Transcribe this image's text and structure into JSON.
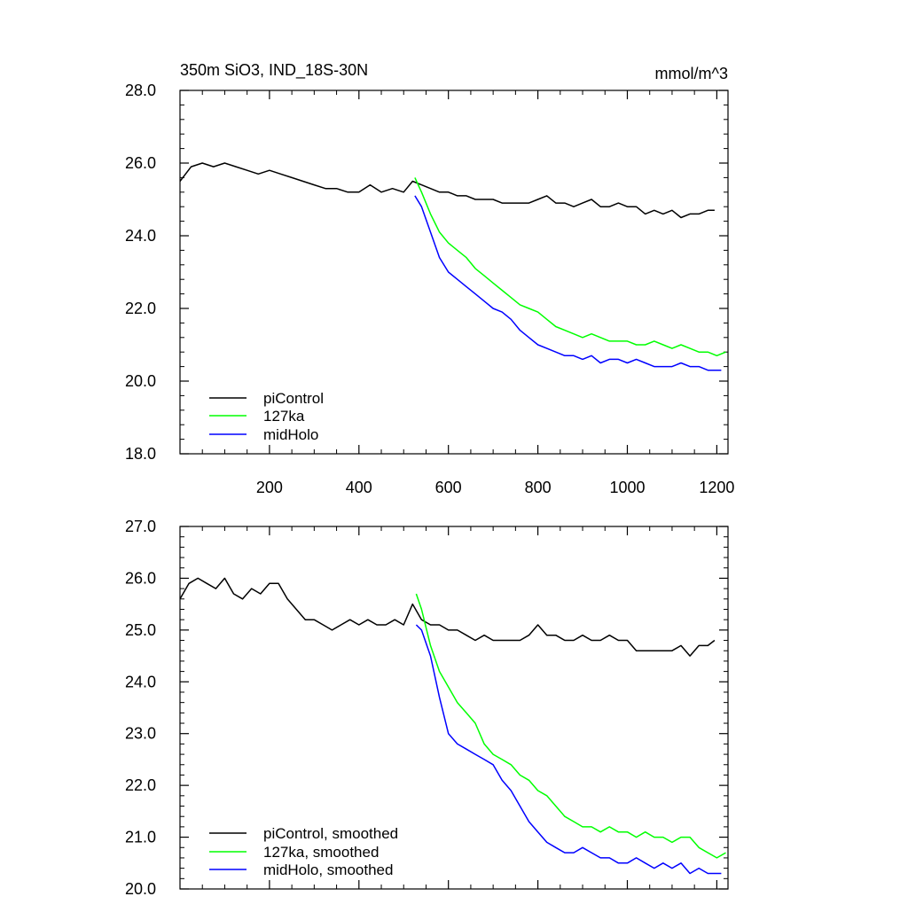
{
  "chart_data": [
    {
      "type": "line",
      "title": "350m SiO3, IND_18S-30N",
      "units": "mmol/m^3",
      "xlim": [
        0,
        1225
      ],
      "ylim": [
        18,
        28
      ],
      "xticks": [
        200,
        400,
        600,
        800,
        1000,
        1200
      ],
      "xtick_labels": [
        "200",
        "400",
        "600",
        "800",
        "1000",
        "1200"
      ],
      "yticks": [
        18,
        20,
        22,
        24,
        26,
        28
      ],
      "ytick_labels": [
        "18.0",
        "20.0",
        "22.0",
        "24.0",
        "26.0",
        "28.0"
      ],
      "legend_position": "bottom-left",
      "series": [
        {
          "name": "piControl",
          "color": "#000000",
          "x": [
            0,
            25,
            50,
            75,
            100,
            125,
            150,
            175,
            200,
            225,
            250,
            275,
            300,
            325,
            350,
            375,
            400,
            425,
            450,
            475,
            500,
            520,
            540,
            560,
            580,
            600,
            620,
            640,
            660,
            680,
            700,
            720,
            740,
            760,
            780,
            800,
            820,
            840,
            860,
            880,
            900,
            920,
            940,
            960,
            980,
            1000,
            1020,
            1040,
            1060,
            1080,
            1100,
            1120,
            1140,
            1160,
            1180,
            1195
          ],
          "values": [
            25.5,
            25.9,
            26.0,
            25.9,
            26.0,
            25.9,
            25.8,
            25.7,
            25.8,
            25.7,
            25.6,
            25.5,
            25.4,
            25.3,
            25.3,
            25.2,
            25.2,
            25.4,
            25.2,
            25.3,
            25.2,
            25.5,
            25.4,
            25.3,
            25.2,
            25.2,
            25.1,
            25.1,
            25.0,
            25.0,
            25.0,
            24.9,
            24.9,
            24.9,
            24.9,
            25.0,
            25.1,
            24.9,
            24.9,
            24.8,
            24.9,
            25.0,
            24.8,
            24.8,
            24.9,
            24.8,
            24.8,
            24.6,
            24.7,
            24.6,
            24.7,
            24.5,
            24.6,
            24.6,
            24.7,
            24.7
          ]
        },
        {
          "name": "127ka",
          "color": "#00ff00",
          "x": [
            525,
            540,
            560,
            580,
            600,
            620,
            640,
            660,
            680,
            700,
            720,
            740,
            760,
            780,
            800,
            820,
            840,
            860,
            880,
            900,
            920,
            940,
            960,
            980,
            1000,
            1020,
            1040,
            1060,
            1080,
            1100,
            1120,
            1140,
            1160,
            1180,
            1200,
            1220
          ],
          "values": [
            25.6,
            25.2,
            24.6,
            24.1,
            23.8,
            23.6,
            23.4,
            23.1,
            22.9,
            22.7,
            22.5,
            22.3,
            22.1,
            22.0,
            21.9,
            21.7,
            21.5,
            21.4,
            21.3,
            21.2,
            21.3,
            21.2,
            21.1,
            21.1,
            21.1,
            21.0,
            21.0,
            21.1,
            21.0,
            20.9,
            21.0,
            20.9,
            20.8,
            20.8,
            20.7,
            20.8
          ]
        },
        {
          "name": "midHolo",
          "color": "#0000ff",
          "x": [
            525,
            540,
            560,
            580,
            600,
            620,
            640,
            660,
            680,
            700,
            720,
            740,
            760,
            780,
            800,
            820,
            840,
            860,
            880,
            900,
            920,
            940,
            960,
            980,
            1000,
            1020,
            1040,
            1060,
            1080,
            1100,
            1120,
            1140,
            1160,
            1180,
            1200,
            1210
          ],
          "values": [
            25.1,
            24.8,
            24.1,
            23.4,
            23.0,
            22.8,
            22.6,
            22.4,
            22.2,
            22.0,
            21.9,
            21.7,
            21.4,
            21.2,
            21.0,
            20.9,
            20.8,
            20.7,
            20.7,
            20.6,
            20.7,
            20.5,
            20.6,
            20.6,
            20.5,
            20.6,
            20.5,
            20.4,
            20.4,
            20.4,
            20.5,
            20.4,
            20.4,
            20.3,
            20.3,
            20.3
          ]
        }
      ]
    },
    {
      "type": "line",
      "title": "",
      "xlim": [
        0,
        1225
      ],
      "ylim": [
        20,
        27
      ],
      "xticks": [
        200,
        400,
        600,
        800,
        1000,
        1200
      ],
      "yticks": [
        20,
        21,
        22,
        23,
        24,
        25,
        26,
        27
      ],
      "ytick_labels": [
        "20.0",
        "21.0",
        "22.0",
        "23.0",
        "24.0",
        "25.0",
        "26.0",
        "27.0"
      ],
      "legend_position": "bottom-left",
      "series": [
        {
          "name": "piControl, smoothed",
          "color": "#000000",
          "x": [
            0,
            20,
            40,
            60,
            80,
            100,
            120,
            140,
            160,
            180,
            200,
            220,
            240,
            260,
            280,
            300,
            320,
            340,
            360,
            380,
            400,
            420,
            440,
            460,
            480,
            500,
            520,
            540,
            560,
            580,
            600,
            620,
            640,
            660,
            680,
            700,
            720,
            740,
            760,
            780,
            800,
            820,
            840,
            860,
            880,
            900,
            920,
            940,
            960,
            980,
            1000,
            1020,
            1040,
            1060,
            1080,
            1100,
            1120,
            1140,
            1160,
            1180,
            1195
          ],
          "values": [
            25.6,
            25.9,
            26.0,
            25.9,
            25.8,
            26.0,
            25.7,
            25.6,
            25.8,
            25.7,
            25.9,
            25.9,
            25.6,
            25.4,
            25.2,
            25.2,
            25.1,
            25.0,
            25.1,
            25.2,
            25.1,
            25.2,
            25.1,
            25.1,
            25.2,
            25.1,
            25.5,
            25.2,
            25.1,
            25.1,
            25.0,
            25.0,
            24.9,
            24.8,
            24.9,
            24.8,
            24.8,
            24.8,
            24.8,
            24.9,
            25.1,
            24.9,
            24.9,
            24.8,
            24.8,
            24.9,
            24.8,
            24.8,
            24.9,
            24.8,
            24.8,
            24.6,
            24.6,
            24.6,
            24.6,
            24.6,
            24.7,
            24.5,
            24.7,
            24.7,
            24.8
          ]
        },
        {
          "name": "127ka, smoothed",
          "color": "#00ff00",
          "x": [
            528,
            540,
            560,
            580,
            600,
            620,
            640,
            660,
            680,
            700,
            720,
            740,
            760,
            780,
            800,
            820,
            840,
            860,
            880,
            900,
            920,
            940,
            960,
            980,
            1000,
            1020,
            1040,
            1060,
            1080,
            1100,
            1120,
            1140,
            1160,
            1180,
            1200,
            1220
          ],
          "values": [
            25.7,
            25.4,
            24.7,
            24.2,
            23.9,
            23.6,
            23.4,
            23.2,
            22.8,
            22.6,
            22.5,
            22.4,
            22.2,
            22.1,
            21.9,
            21.8,
            21.6,
            21.4,
            21.3,
            21.2,
            21.2,
            21.1,
            21.2,
            21.1,
            21.1,
            21.0,
            21.1,
            21.0,
            21.0,
            20.9,
            21.0,
            21.0,
            20.8,
            20.7,
            20.6,
            20.7
          ]
        },
        {
          "name": "midHolo, smoothed",
          "color": "#0000ff",
          "x": [
            528,
            540,
            560,
            580,
            600,
            620,
            640,
            660,
            680,
            700,
            720,
            740,
            760,
            780,
            800,
            820,
            840,
            860,
            880,
            900,
            920,
            940,
            960,
            980,
            1000,
            1020,
            1040,
            1060,
            1080,
            1100,
            1120,
            1140,
            1160,
            1180,
            1200,
            1210
          ],
          "values": [
            25.1,
            25.0,
            24.5,
            23.7,
            23.0,
            22.8,
            22.7,
            22.6,
            22.5,
            22.4,
            22.1,
            21.9,
            21.6,
            21.3,
            21.1,
            20.9,
            20.8,
            20.7,
            20.7,
            20.8,
            20.7,
            20.6,
            20.6,
            20.5,
            20.5,
            20.6,
            20.5,
            20.4,
            20.5,
            20.4,
            20.5,
            20.3,
            20.4,
            20.3,
            20.3,
            20.3
          ]
        }
      ]
    }
  ]
}
